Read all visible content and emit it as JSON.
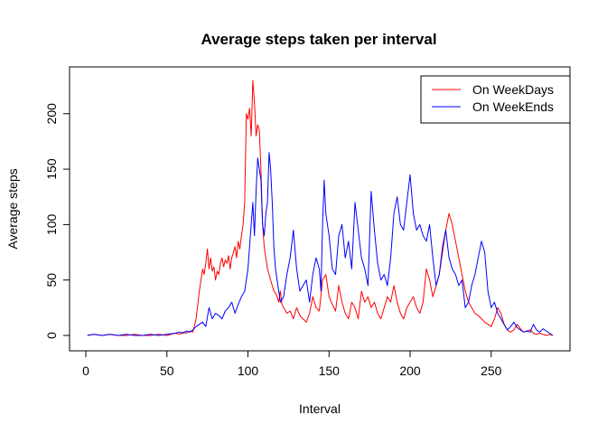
{
  "chart_data": {
    "type": "line",
    "title": "Average steps taken per interval",
    "xlabel": "Interval",
    "ylabel": "Average steps",
    "xlim": [
      0,
      288
    ],
    "ylim": [
      0,
      230
    ],
    "xticks": [
      0,
      50,
      100,
      150,
      200,
      250
    ],
    "yticks": [
      0,
      50,
      100,
      150,
      200
    ],
    "legend_position": "top-right",
    "series": [
      {
        "name": "On WeekDays",
        "color": "#ff0000",
        "x": [
          1,
          5,
          10,
          15,
          20,
          25,
          30,
          35,
          40,
          45,
          50,
          55,
          58,
          60,
          62,
          64,
          66,
          68,
          70,
          71,
          72,
          73,
          74,
          75,
          76,
          77,
          78,
          79,
          80,
          81,
          82,
          83,
          84,
          85,
          86,
          87,
          88,
          89,
          90,
          91,
          92,
          93,
          94,
          95,
          96,
          97,
          98,
          99,
          100,
          101,
          102,
          103,
          104,
          105,
          106,
          107,
          108,
          109,
          110,
          111,
          112,
          113,
          114,
          115,
          116,
          117,
          118,
          119,
          120,
          121,
          122,
          124,
          126,
          128,
          130,
          132,
          134,
          136,
          138,
          140,
          142,
          144,
          146,
          148,
          150,
          152,
          154,
          156,
          158,
          160,
          162,
          164,
          166,
          168,
          170,
          172,
          174,
          176,
          178,
          180,
          182,
          184,
          186,
          188,
          190,
          192,
          194,
          196,
          198,
          200,
          202,
          204,
          206,
          208,
          210,
          212,
          214,
          216,
          218,
          220,
          222,
          224,
          226,
          228,
          230,
          232,
          234,
          236,
          238,
          240,
          242,
          244,
          246,
          248,
          250,
          252,
          254,
          256,
          258,
          260,
          262,
          264,
          266,
          268,
          270,
          272,
          274,
          276,
          278,
          280,
          282,
          284,
          286,
          288
        ],
        "values": [
          0,
          1,
          0,
          1,
          0,
          0,
          1,
          0,
          0,
          1,
          0,
          2,
          1,
          3,
          2,
          4,
          3,
          15,
          40,
          50,
          60,
          55,
          65,
          78,
          60,
          70,
          58,
          62,
          50,
          58,
          55,
          65,
          70,
          62,
          68,
          65,
          72,
          60,
          70,
          75,
          80,
          70,
          85,
          78,
          90,
          100,
          120,
          200,
          195,
          205,
          180,
          230,
          210,
          180,
          190,
          185,
          150,
          100,
          80,
          70,
          60,
          55,
          50,
          45,
          40,
          38,
          35,
          30,
          40,
          28,
          25,
          20,
          22,
          15,
          25,
          18,
          15,
          12,
          20,
          35,
          25,
          22,
          50,
          55,
          35,
          28,
          22,
          45,
          30,
          20,
          15,
          30,
          25,
          15,
          40,
          30,
          35,
          25,
          30,
          20,
          15,
          25,
          35,
          30,
          45,
          30,
          20,
          15,
          25,
          30,
          35,
          25,
          20,
          30,
          60,
          50,
          35,
          45,
          55,
          75,
          95,
          110,
          100,
          85,
          70,
          55,
          40,
          30,
          25,
          20,
          18,
          15,
          12,
          10,
          8,
          15,
          25,
          20,
          10,
          5,
          3,
          5,
          10,
          6,
          3,
          4,
          5,
          2,
          1,
          2,
          1,
          0,
          1,
          0
        ]
      },
      {
        "name": "On WeekEnds",
        "color": "#0000ff",
        "x": [
          1,
          5,
          10,
          15,
          20,
          25,
          30,
          35,
          40,
          45,
          50,
          55,
          58,
          60,
          62,
          64,
          66,
          68,
          70,
          72,
          74,
          76,
          78,
          80,
          82,
          84,
          86,
          88,
          90,
          92,
          94,
          96,
          98,
          100,
          101,
          102,
          103,
          104,
          105,
          106,
          107,
          108,
          109,
          110,
          111,
          112,
          113,
          114,
          115,
          116,
          117,
          118,
          119,
          120,
          122,
          124,
          126,
          128,
          130,
          132,
          134,
          136,
          138,
          140,
          142,
          144,
          145,
          146,
          147,
          148,
          150,
          152,
          154,
          156,
          158,
          160,
          162,
          164,
          166,
          168,
          170,
          172,
          174,
          176,
          178,
          180,
          182,
          184,
          186,
          188,
          190,
          192,
          194,
          196,
          198,
          200,
          202,
          204,
          206,
          208,
          210,
          212,
          214,
          216,
          218,
          220,
          222,
          224,
          226,
          228,
          230,
          232,
          234,
          236,
          238,
          240,
          242,
          244,
          246,
          248,
          250,
          252,
          254,
          256,
          258,
          260,
          262,
          264,
          266,
          268,
          270,
          272,
          274,
          276,
          278,
          280,
          282,
          284,
          286,
          288
        ],
        "values": [
          0,
          1,
          0,
          1,
          0,
          1,
          0,
          0,
          1,
          0,
          1,
          2,
          3,
          2,
          4,
          3,
          5,
          8,
          10,
          12,
          8,
          25,
          15,
          20,
          18,
          15,
          22,
          25,
          30,
          20,
          28,
          35,
          40,
          60,
          80,
          100,
          120,
          90,
          130,
          160,
          150,
          140,
          100,
          90,
          110,
          120,
          165,
          150,
          120,
          80,
          60,
          50,
          40,
          30,
          35,
          55,
          70,
          95,
          60,
          40,
          45,
          50,
          30,
          55,
          70,
          60,
          40,
          100,
          140,
          110,
          90,
          60,
          55,
          90,
          100,
          70,
          85,
          60,
          120,
          95,
          70,
          60,
          45,
          130,
          95,
          65,
          50,
          55,
          45,
          70,
          110,
          125,
          100,
          95,
          120,
          145,
          110,
          95,
          100,
          90,
          85,
          100,
          70,
          45,
          55,
          80,
          95,
          70,
          60,
          55,
          45,
          50,
          25,
          30,
          45,
          55,
          70,
          85,
          75,
          40,
          25,
          30,
          20,
          15,
          10,
          5,
          8,
          12,
          7,
          5,
          3,
          4,
          3,
          10,
          5,
          3,
          6,
          4,
          2,
          0
        ]
      }
    ]
  }
}
